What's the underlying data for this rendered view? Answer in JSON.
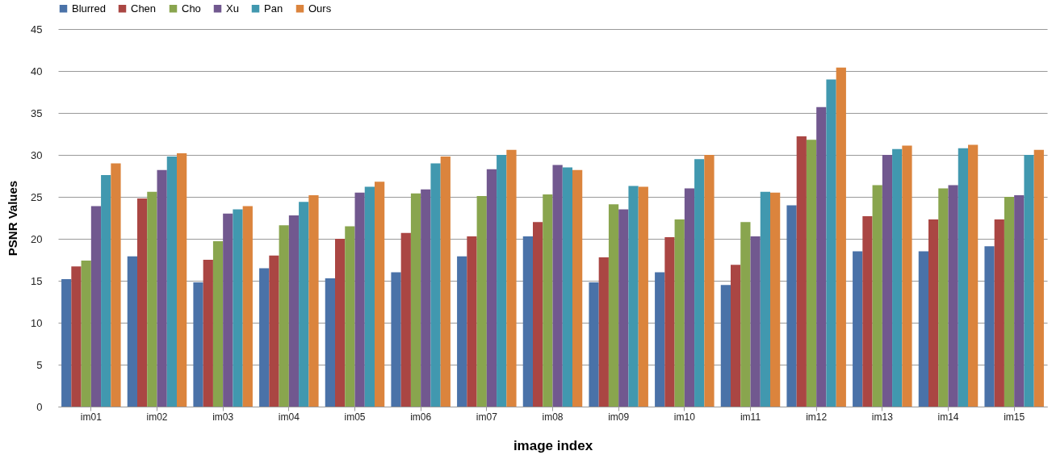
{
  "chart_data": {
    "type": "bar",
    "xlabel": "image index",
    "ylabel": "PSNR  Values",
    "categories": [
      "im01",
      "im02",
      "im03",
      "im04",
      "im05",
      "im06",
      "im07",
      "im08",
      "im09",
      "im10",
      "im11",
      "im12",
      "im13",
      "im14",
      "im15"
    ],
    "series": [
      {
        "name": "Blurred",
        "color": "#4a72a8",
        "values": [
          15.2,
          17.9,
          14.8,
          16.5,
          15.3,
          16.0,
          17.9,
          20.3,
          14.8,
          16.0,
          14.5,
          24.0,
          18.5,
          18.5,
          19.1
        ]
      },
      {
        "name": "Chen",
        "color": "#aa4643",
        "values": [
          16.7,
          24.8,
          17.5,
          18.0,
          20.0,
          20.7,
          20.3,
          22.0,
          17.8,
          20.2,
          16.9,
          32.2,
          22.7,
          22.3,
          22.3
        ]
      },
      {
        "name": "Cho",
        "color": "#89a54e",
        "values": [
          17.4,
          25.6,
          19.7,
          21.6,
          21.5,
          25.4,
          25.1,
          25.3,
          24.1,
          22.3,
          22.0,
          31.8,
          26.4,
          26.0,
          25.0
        ]
      },
      {
        "name": "Xu",
        "color": "#71588f",
        "values": [
          23.9,
          28.2,
          23.0,
          22.8,
          25.5,
          25.9,
          28.3,
          28.8,
          23.5,
          26.0,
          20.3,
          35.7,
          30.0,
          26.4,
          25.2
        ]
      },
      {
        "name": "Pan",
        "color": "#4198af",
        "values": [
          27.6,
          29.8,
          23.5,
          24.4,
          26.2,
          29.0,
          30.0,
          28.5,
          26.3,
          29.5,
          25.6,
          39.0,
          30.7,
          30.8,
          30.0
        ]
      },
      {
        "name": "Ours",
        "color": "#db843d",
        "values": [
          29.0,
          30.2,
          23.9,
          25.2,
          26.8,
          29.8,
          30.6,
          28.2,
          26.2,
          30.0,
          25.5,
          40.4,
          31.1,
          31.2,
          30.6
        ]
      }
    ],
    "ylim": [
      0,
      45
    ],
    "yticks": [
      0,
      5,
      10,
      15,
      20,
      25,
      30,
      35,
      40,
      45
    ],
    "grid": "y",
    "legend": "top"
  }
}
